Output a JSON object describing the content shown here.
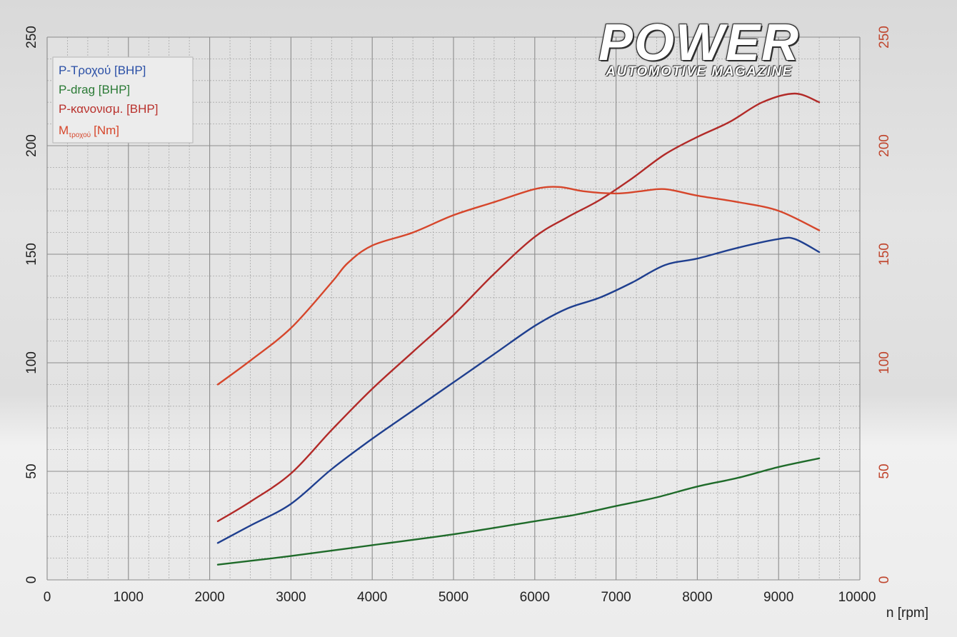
{
  "brand": {
    "title": "POWER",
    "subtitle": "AUTOMOTIVE MAGAZINE"
  },
  "chart_data": {
    "type": "line",
    "xlabel": "n [rpm]",
    "xlim": [
      0,
      10000
    ],
    "x_ticks": [
      0,
      1000,
      2000,
      3000,
      4000,
      5000,
      6000,
      7000,
      8000,
      9000,
      10000
    ],
    "ylim": [
      0,
      250
    ],
    "y_ticks": [
      0,
      50,
      100,
      150,
      200,
      250
    ],
    "y2lim": [
      0,
      250
    ],
    "y2_ticks": [
      0,
      50,
      100,
      150,
      200,
      250
    ],
    "grid": true,
    "legend_position": "top-left",
    "series": [
      {
        "name": "P-Τροχού [BHP]",
        "color": "#1f3f8f",
        "axis": "left",
        "x": [
          2100,
          2500,
          3000,
          3500,
          4000,
          4500,
          5000,
          5500,
          6000,
          6400,
          6800,
          7200,
          7600,
          8000,
          8500,
          9000,
          9200,
          9500
        ],
        "values": [
          17,
          25,
          35,
          51,
          65,
          78,
          91,
          104,
          117,
          125,
          130,
          137,
          145,
          148,
          153,
          157,
          157,
          151
        ]
      },
      {
        "name": "P-drag [BHP]",
        "color": "#1f6b2a",
        "axis": "left",
        "x": [
          2100,
          3000,
          4000,
          5000,
          6000,
          6500,
          7000,
          7500,
          8000,
          8500,
          9000,
          9500
        ],
        "values": [
          7,
          11,
          16,
          21,
          27,
          30,
          34,
          38,
          43,
          47,
          52,
          56
        ]
      },
      {
        "name": "P-κανονισμ. [BHP]",
        "color": "#b22a28",
        "axis": "left",
        "x": [
          2100,
          2500,
          3000,
          3500,
          4000,
          4500,
          5000,
          5500,
          6000,
          6400,
          6800,
          7200,
          7600,
          8000,
          8400,
          8800,
          9200,
          9500
        ],
        "values": [
          27,
          36,
          49,
          69,
          88,
          105,
          122,
          141,
          158,
          167,
          175,
          185,
          196,
          204,
          211,
          220,
          224,
          220
        ]
      },
      {
        "name": "M",
        "subscript": "τροχού",
        "unit": "[Nm]",
        "color": "#d6462b",
        "axis": "right",
        "x": [
          2100,
          2500,
          3000,
          3500,
          3700,
          4000,
          4500,
          5000,
          5500,
          6000,
          6300,
          6600,
          7000,
          7300,
          7600,
          8000,
          8500,
          9000,
          9500
        ],
        "values": [
          90,
          101,
          116,
          137,
          146,
          154,
          160,
          168,
          174,
          180,
          181,
          179,
          178,
          179,
          180,
          177,
          174,
          170,
          161
        ]
      }
    ]
  }
}
